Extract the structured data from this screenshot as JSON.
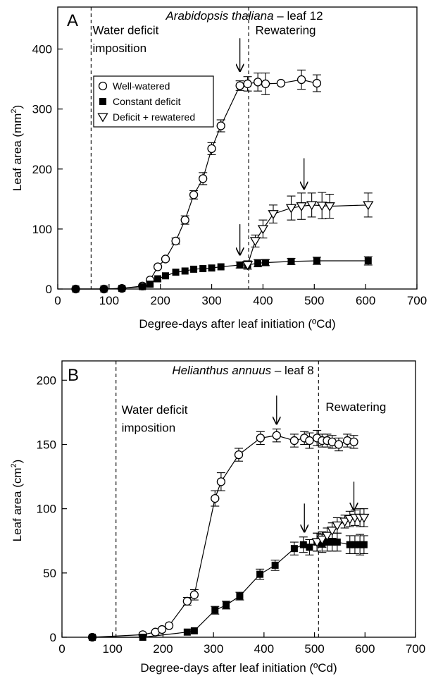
{
  "chart_data": [
    {
      "type": "line",
      "panel_letter": "A",
      "title_italic": "Arabidopsis thaliana",
      "title_rest": " – leaf 12",
      "xlabel": "Degree-days after leaf initiation (ºCd)",
      "ylabel_main": "Leaf area (mm",
      "ylabel_sup": "2",
      "ylabel_close": ")",
      "xlim": [
        0,
        700
      ],
      "ylim": [
        0,
        470
      ],
      "xticks": [
        0,
        100,
        200,
        300,
        400,
        500,
        600,
        700
      ],
      "yticks": [
        0,
        100,
        200,
        300,
        400
      ],
      "vlines": [
        65,
        372
      ],
      "annotations": [
        {
          "text": "Water deficit",
          "x": 68,
          "y": 425
        },
        {
          "text": "imposition",
          "x": 68,
          "y": 395
        },
        {
          "text": "Rewatering",
          "x": 385,
          "y": 425
        }
      ],
      "arrows": [
        {
          "x": 355,
          "y_tip": 363,
          "y_tail": 418
        },
        {
          "x": 355,
          "y_tip": 57,
          "y_tail": 108
        },
        {
          "x": 480,
          "y_tip": 167,
          "y_tail": 218
        }
      ],
      "legend": {
        "placement": "upper-left",
        "entries": [
          {
            "label": "Well-watered",
            "marker": "circle"
          },
          {
            "label": "Constant deficit",
            "marker": "square"
          },
          {
            "label": "Deficit + rewatered",
            "marker": "triangle-down"
          }
        ]
      },
      "series": [
        {
          "name": "Well-watered",
          "marker": "circle",
          "x": [
            35,
            90,
            125,
            165,
            180,
            195,
            210,
            230,
            248,
            265,
            283,
            300,
            318,
            355,
            370,
            390,
            405,
            435,
            475,
            505
          ],
          "y": [
            0,
            0,
            1,
            5,
            15,
            37,
            50,
            80,
            115,
            157,
            184,
            234,
            272,
            339,
            342,
            345,
            342,
            343,
            349,
            343
          ],
          "err": [
            0,
            0,
            0,
            0,
            0,
            0,
            0,
            5,
            7,
            7,
            10,
            10,
            10,
            8,
            12,
            15,
            18,
            0,
            16,
            14
          ]
        },
        {
          "name": "Constant deficit",
          "marker": "square",
          "x": [
            35,
            90,
            125,
            165,
            180,
            195,
            210,
            230,
            248,
            265,
            283,
            300,
            318,
            355,
            370,
            390,
            405,
            455,
            505,
            605
          ],
          "y": [
            0,
            0,
            1,
            4,
            8,
            17,
            22,
            28,
            30,
            33,
            34,
            35,
            37,
            40,
            40,
            43,
            44,
            46,
            47,
            47
          ],
          "err": [
            0,
            0,
            0,
            0,
            0,
            0,
            0,
            0,
            0,
            0,
            0,
            0,
            0,
            5,
            7,
            6,
            5,
            5,
            6,
            7
          ]
        },
        {
          "name": "Deficit + rewatered",
          "marker": "triangle-down",
          "x": [
            370,
            385,
            400,
            420,
            455,
            475,
            495,
            515,
            530,
            605
          ],
          "y": [
            40,
            80,
            100,
            125,
            135,
            138,
            140,
            139,
            138,
            140
          ],
          "err": [
            0,
            10,
            15,
            15,
            20,
            22,
            20,
            22,
            20,
            20
          ]
        }
      ]
    },
    {
      "type": "line",
      "panel_letter": "B",
      "title_italic": "Helianthus annuus",
      "title_rest": " – leaf 8",
      "xlabel": "Degree-days after leaf initiation (ºCd)",
      "ylabel_main": "Leaf area (cm",
      "ylabel_sup": "2",
      "ylabel_close": ")",
      "xlim": [
        0,
        700
      ],
      "ylim": [
        0,
        215
      ],
      "xticks": [
        0,
        100,
        200,
        300,
        400,
        500,
        600,
        700
      ],
      "yticks": [
        0,
        50,
        100,
        150,
        200
      ],
      "vlines": [
        107,
        508
      ],
      "annotations": [
        {
          "text": "Water deficit",
          "x": 118,
          "y": 174
        },
        {
          "text": "imposition",
          "x": 118,
          "y": 160
        },
        {
          "text": "Rewatering",
          "x": 522,
          "y": 176
        }
      ],
      "arrows": [
        {
          "x": 425,
          "y_tip": 166,
          "y_tail": 188
        },
        {
          "x": 480,
          "y_tip": 82,
          "y_tail": 104
        },
        {
          "x": 578,
          "y_tip": 99,
          "y_tail": 121
        }
      ],
      "series": [
        {
          "name": "Well-watered",
          "marker": "circle",
          "x": [
            60,
            160,
            185,
            198,
            212,
            248,
            262,
            303,
            315,
            350,
            393,
            425,
            460,
            480,
            490,
            505,
            515,
            525,
            535,
            548,
            565,
            578
          ],
          "y": [
            0,
            2,
            4,
            6,
            9,
            28,
            33,
            108,
            121,
            142,
            155,
            157,
            153,
            155,
            153,
            155,
            153,
            153,
            152,
            150,
            153,
            152
          ],
          "err": [
            0,
            0,
            0,
            0,
            0,
            3,
            4,
            6,
            7,
            5,
            5,
            5,
            5,
            5,
            6,
            6,
            5,
            5,
            5,
            5,
            5,
            5
          ]
        },
        {
          "name": "Constant deficit",
          "marker": "square",
          "x": [
            60,
            160,
            248,
            262,
            303,
            325,
            352,
            392,
            422,
            460,
            478,
            490,
            505,
            515,
            525,
            535,
            545,
            570,
            580,
            590,
            598
          ],
          "y": [
            0,
            0,
            4,
            5,
            21,
            25,
            32,
            49,
            56,
            69,
            72,
            70,
            74,
            73,
            74,
            74,
            74,
            72,
            72,
            72,
            72
          ],
          "err": [
            0,
            0,
            0,
            0,
            3,
            3,
            3,
            4,
            4,
            5,
            6,
            6,
            7,
            7,
            7,
            7,
            7,
            7,
            7,
            8,
            7
          ]
        },
        {
          "name": "Deficit + rewatered",
          "marker": "triangle-down",
          "x": [
            505,
            515,
            525,
            535,
            545,
            560,
            570,
            580,
            590,
            598
          ],
          "y": [
            74,
            76,
            79,
            83,
            87,
            90,
            92,
            93,
            93,
            93
          ],
          "err": [
            7,
            6,
            6,
            6,
            6,
            5,
            6,
            6,
            7,
            7
          ]
        }
      ]
    }
  ]
}
